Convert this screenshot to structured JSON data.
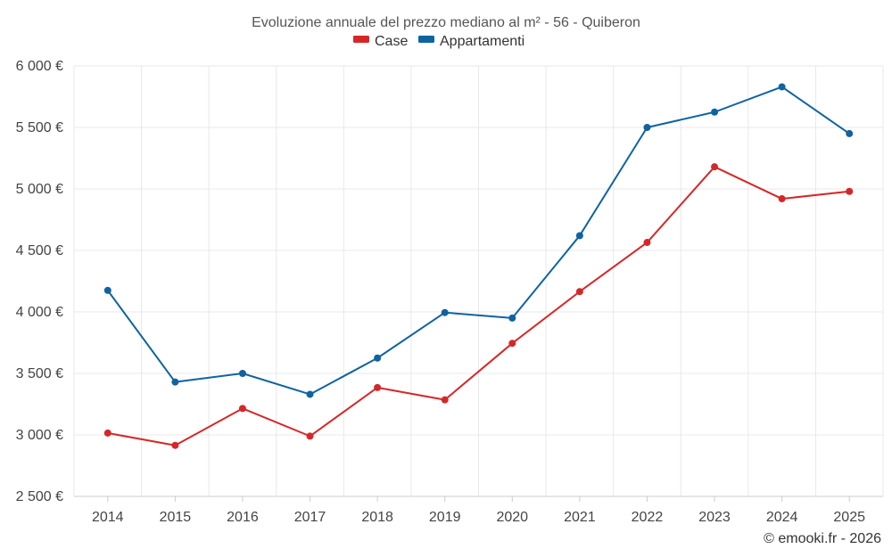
{
  "chart_data": {
    "type": "line",
    "title": "Evoluzione annuale del prezzo mediano al m² - 56 - Quiberon",
    "categories": [
      "2014",
      "2015",
      "2016",
      "2017",
      "2018",
      "2019",
      "2020",
      "2021",
      "2022",
      "2023",
      "2024",
      "2025"
    ],
    "series": [
      {
        "name": "Case",
        "color": "#d62728",
        "values": [
          3015,
          2915,
          3215,
          2990,
          3385,
          3285,
          3745,
          4165,
          4565,
          5180,
          4920,
          4980
        ]
      },
      {
        "name": "Appartamenti",
        "color": "#0f63a0",
        "values": [
          4175,
          3430,
          3500,
          3330,
          3625,
          3995,
          3950,
          4620,
          5500,
          5625,
          5830,
          5450
        ]
      }
    ],
    "ylim": [
      2500,
      6000
    ],
    "yticks": [
      2500,
      3000,
      3500,
      4000,
      4500,
      5000,
      5500,
      6000
    ],
    "ytick_labels": [
      "2 500 €",
      "3 000 €",
      "3 500 €",
      "4 000 €",
      "4 500 €",
      "5 000 €",
      "5 500 €",
      "6 000 €"
    ],
    "xlabel": "",
    "ylabel": "",
    "grid": true,
    "legend": "top-center"
  },
  "credit": "© emooki.fr - 2026"
}
